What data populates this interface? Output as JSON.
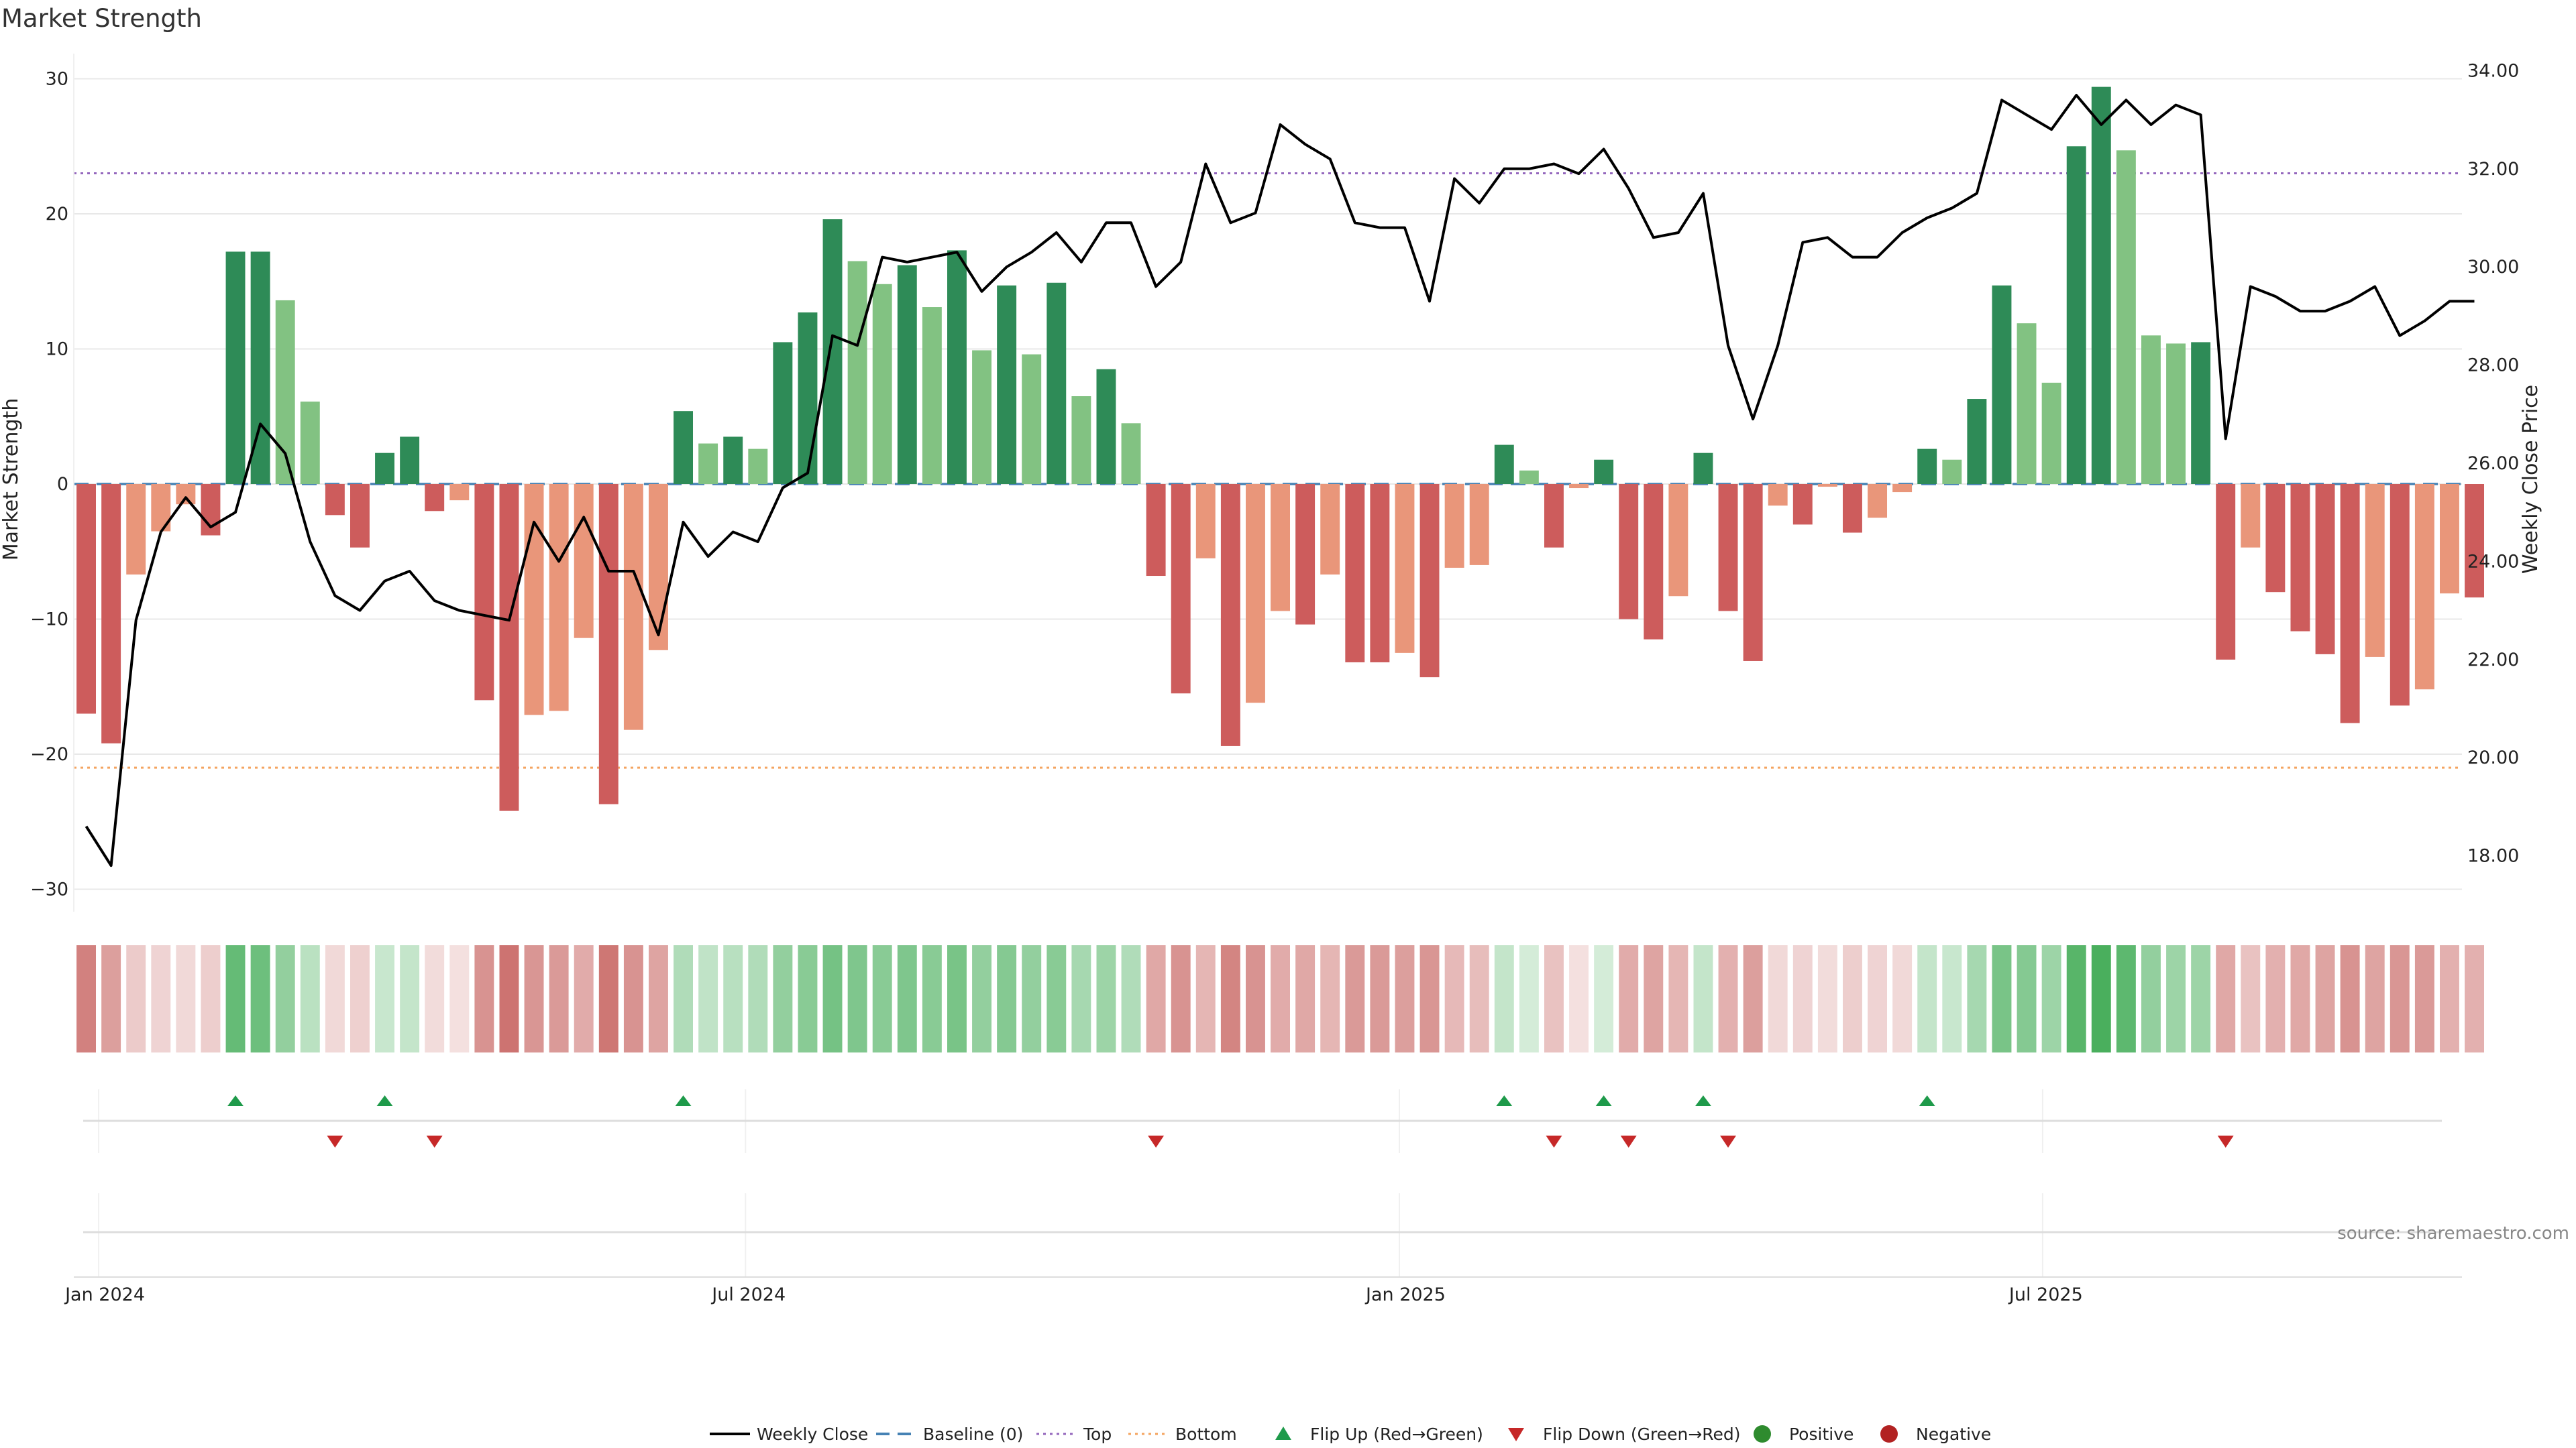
{
  "chart_data": {
    "type": "bar",
    "title": "Market Strength",
    "ylabel": "Market Strength",
    "y2label": "Weekly Close Price",
    "ylim": [
      -33,
      32
    ],
    "y2lim": [
      17.0,
      34.4
    ],
    "yticks": [
      -30,
      -20,
      -10,
      0,
      10,
      20,
      30
    ],
    "y2ticks": [
      18.0,
      20.0,
      22.0,
      24.0,
      26.0,
      28.0,
      30.0,
      32.0,
      34.0
    ],
    "y2tick_labels": [
      "18.00",
      "20.00",
      "22.00",
      "24.00",
      "26.00",
      "28.00",
      "30.00",
      "32.00",
      "34.00"
    ],
    "x_start": "2023-12-25",
    "x_end": "2025-10-27",
    "xticks": [
      {
        "date": "2024-01-01",
        "label": "Jan 2024"
      },
      {
        "date": "2024-07-01",
        "label": "Jul 2024"
      },
      {
        "date": "2025-01-01",
        "label": "Jan 2025"
      },
      {
        "date": "2025-07-01",
        "label": "Jul 2025"
      }
    ],
    "first_week": "2023-12-25",
    "strength": [
      -17.0,
      -19.2,
      -6.7,
      -3.5,
      -1.5,
      -3.8,
      17.2,
      17.2,
      13.6,
      6.1,
      -2.3,
      -4.7,
      2.3,
      3.5,
      -2.0,
      -1.2,
      -16.0,
      -24.2,
      -17.1,
      -16.8,
      -11.4,
      -23.7,
      -18.2,
      -12.3,
      5.4,
      3.0,
      3.5,
      2.6,
      10.5,
      12.7,
      19.6,
      16.5,
      14.8,
      16.2,
      13.1,
      17.3,
      9.9,
      14.7,
      9.6,
      14.9,
      6.5,
      8.5,
      4.5,
      -6.8,
      -15.5,
      -5.5,
      -19.4,
      -16.2,
      -9.4,
      -10.4,
      -6.7,
      -13.2,
      -13.2,
      -12.5,
      -14.3,
      -6.2,
      -6.0,
      2.9,
      1.0,
      -4.7,
      -0.3,
      1.8,
      -10.0,
      -11.5,
      -8.3,
      2.3,
      -9.4,
      -13.1,
      -1.6,
      -3.0,
      -0.2,
      -3.6,
      -2.5,
      -0.6,
      2.6,
      1.8,
      6.3,
      14.7,
      11.9,
      7.5,
      25.0,
      29.4,
      24.7,
      11.0,
      10.4,
      10.5,
      -13.0,
      -4.7,
      -8.0,
      -10.9,
      -12.6,
      -17.7,
      -12.8,
      -16.4,
      -15.2,
      -8.1,
      -8.4
    ],
    "weekly_close": [
      18.6,
      17.8,
      22.8,
      24.6,
      25.3,
      24.7,
      25.0,
      26.8,
      26.2,
      24.4,
      23.3,
      23.0,
      23.6,
      23.8,
      23.2,
      23.0,
      22.9,
      22.8,
      24.8,
      24.0,
      24.9,
      23.8,
      23.8,
      22.5,
      24.8,
      24.1,
      24.6,
      24.4,
      25.5,
      25.8,
      28.6,
      28.4,
      30.2,
      30.1,
      30.2,
      30.3,
      29.5,
      30.0,
      30.3,
      30.7,
      30.1,
      30.9,
      30.9,
      29.6,
      30.1,
      32.1,
      30.9,
      31.1,
      32.9,
      32.5,
      32.2,
      30.9,
      30.8,
      30.8,
      29.3,
      31.8,
      31.3,
      32.0,
      32.0,
      32.1,
      31.9,
      32.4,
      31.6,
      30.6,
      30.7,
      31.5,
      28.4,
      26.9,
      28.4,
      30.5,
      30.6,
      30.2,
      30.2,
      30.7,
      31.0,
      31.2,
      31.5,
      33.4,
      33.1,
      32.8,
      33.5,
      32.9,
      33.4,
      32.9,
      33.3,
      33.1,
      26.5,
      29.6,
      29.4,
      29.1,
      29.1,
      29.3,
      29.6,
      28.6,
      28.9,
      29.3,
      29.3
    ],
    "top": 23.0,
    "bottom": -21.0,
    "baseline": 0,
    "flip_up_weeks": [
      6,
      12,
      24,
      57,
      61,
      65,
      74
    ],
    "flip_down_weeks": [
      10,
      14,
      43,
      59,
      62,
      66,
      86
    ],
    "heat_intensity": [
      0.72,
      0.55,
      0.3,
      0.25,
      0.22,
      0.28,
      0.78,
      0.74,
      0.55,
      0.35,
      0.22,
      0.27,
      0.28,
      0.3,
      0.2,
      0.18,
      0.62,
      0.8,
      0.6,
      0.58,
      0.48,
      0.78,
      0.62,
      0.52,
      0.4,
      0.32,
      0.36,
      0.4,
      0.55,
      0.6,
      0.7,
      0.65,
      0.6,
      0.65,
      0.6,
      0.68,
      0.55,
      0.62,
      0.55,
      0.6,
      0.45,
      0.5,
      0.4,
      0.5,
      0.62,
      0.42,
      0.7,
      0.62,
      0.48,
      0.5,
      0.42,
      0.58,
      0.58,
      0.55,
      0.6,
      0.4,
      0.38,
      0.3,
      0.22,
      0.35,
      0.18,
      0.22,
      0.48,
      0.52,
      0.42,
      0.3,
      0.45,
      0.55,
      0.22,
      0.25,
      0.2,
      0.28,
      0.25,
      0.22,
      0.3,
      0.28,
      0.45,
      0.68,
      0.62,
      0.5,
      0.85,
      0.92,
      0.82,
      0.55,
      0.5,
      0.5,
      0.5,
      0.35,
      0.45,
      0.5,
      0.52,
      0.62,
      0.52,
      0.6,
      0.58,
      0.45,
      0.45
    ],
    "legend": [
      {
        "key": "weekly",
        "label": "Weekly Close"
      },
      {
        "key": "baseline",
        "label": "Baseline (0)"
      },
      {
        "key": "top",
        "label": "Top"
      },
      {
        "key": "bottom",
        "label": "Bottom"
      },
      {
        "key": "flipup",
        "label": "Flip Up (Red→Green)"
      },
      {
        "key": "flipdown",
        "label": "Flip Down (Green→Red)"
      },
      {
        "key": "positive",
        "label": "Positive"
      },
      {
        "key": "negative",
        "label": "Negative"
      }
    ],
    "legend_position": "bottom-center",
    "grid": true,
    "source": "source: sharemaestro.com"
  },
  "colors": {
    "pos_strong": "#2e8b57",
    "pos_weak": "#82c282",
    "neg_strong": "#cd5c5c",
    "neg_weak": "#e9967a",
    "line": "#000000",
    "baseline": "#4682b4",
    "top": "#9467bd",
    "bottom": "#f4a460",
    "flip_up": "#1e9a4a",
    "flip_down": "#c62828",
    "positive_dot": "#2e8b2e",
    "negative_dot": "#b22222",
    "grid": "#e8e8e8"
  }
}
